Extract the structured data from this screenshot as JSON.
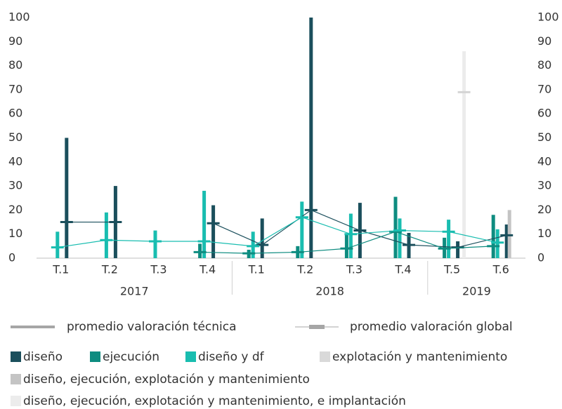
{
  "chart_data": {
    "type": "bar",
    "categories": [
      "T.1",
      "T.2",
      "T.3",
      "T.4",
      "T.1",
      "T.2",
      "T.3",
      "T.4",
      "T.5",
      "T.6"
    ],
    "category_groups": [
      "2017",
      "2017",
      "2017",
      "2017",
      "2018",
      "2018",
      "2018",
      "2018",
      "2019",
      "2019"
    ],
    "ylim": [
      0,
      100
    ],
    "yticks": [
      0,
      10,
      20,
      30,
      40,
      50,
      60,
      70,
      80,
      90,
      100
    ],
    "y2lim": [
      0,
      100
    ],
    "y2ticks": [
      0,
      10,
      20,
      30,
      40,
      50,
      60,
      70,
      80,
      90,
      100
    ],
    "series": [
      {
        "name": "diseño",
        "color": "#1b4f5c",
        "values": [
          50,
          30,
          null,
          22,
          16.5,
          100,
          23,
          10.5,
          7,
          14
        ]
      },
      {
        "name": "ejecución",
        "color": "#0e8c80",
        "values": [
          null,
          null,
          null,
          6,
          3.5,
          5,
          10,
          25.5,
          8.5,
          18
        ]
      },
      {
        "name": "diseño y df",
        "color": "#19bdb0",
        "values": [
          11,
          19,
          11.5,
          28,
          11,
          23.5,
          18.5,
          16.5,
          16,
          12
        ]
      },
      {
        "name": "explotación y mantenimiento",
        "color": "#d9d9d9",
        "values": [
          null,
          null,
          null,
          null,
          null,
          null,
          null,
          null,
          null,
          null
        ]
      },
      {
        "name": "diseño, ejecución, explotación y mantenimiento",
        "color": "#c4c4c4",
        "values": [
          null,
          null,
          null,
          null,
          null,
          null,
          null,
          null,
          null,
          20
        ]
      },
      {
        "name": "diseño, ejecución, explotación y mantenimiento, e implantación",
        "color": "#ececec",
        "values": [
          null,
          null,
          null,
          null,
          null,
          null,
          null,
          null,
          86,
          null
        ]
      }
    ],
    "lines": [
      {
        "color": "#1b4f5c",
        "values": [
          15,
          15,
          null,
          14.5,
          5.5,
          20,
          11.5,
          5.5,
          4.5,
          9.5
        ]
      },
      {
        "color": "#0e8c80",
        "values": [
          null,
          null,
          null,
          2.5,
          2,
          2.5,
          4,
          11,
          4,
          5
        ]
      },
      {
        "color": "#19bdb0",
        "values": [
          4.5,
          7.5,
          7,
          7,
          5,
          17,
          10,
          11.5,
          11,
          6.5
        ]
      },
      {
        "color": "#d4d4d4",
        "values": [
          null,
          null,
          null,
          null,
          null,
          null,
          null,
          null,
          69,
          null
        ]
      }
    ],
    "legend_lines": [
      {
        "name": "promedio valoración técnica",
        "color": "#a6a6a6"
      },
      {
        "name": "promedio valoración global",
        "color": "#a6a6a6"
      }
    ]
  }
}
